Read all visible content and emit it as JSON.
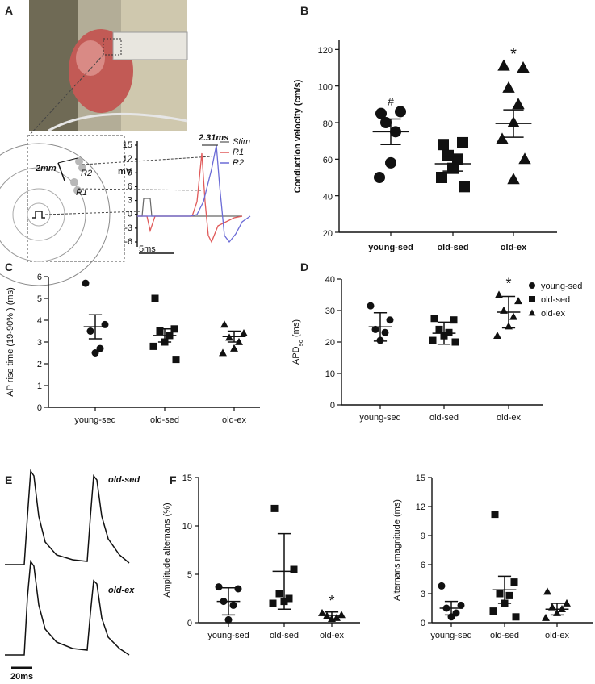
{
  "panels": {
    "A": {
      "label": "A",
      "annotations": {
        "distance": "2mm",
        "r1": "R1",
        "r2": "R2",
        "delay": "2.31ms",
        "yunit": "mV",
        "timebar": "5ms"
      },
      "legend": [
        {
          "name": "Stim",
          "color": "#777777"
        },
        {
          "name": "R1",
          "color": "#e05a5a"
        },
        {
          "name": "R2",
          "color": "#6b6bd6"
        }
      ],
      "yticks": [
        "15",
        "12",
        "9",
        "6",
        "3",
        "0",
        "-3",
        "-6"
      ]
    },
    "E": {
      "label": "E",
      "trace_labels": [
        "old-sed",
        "old-ex"
      ],
      "scalebar": "20ms"
    }
  },
  "chart_data": [
    {
      "id": "B",
      "label": "B",
      "type": "scatter",
      "ylabel": "Conduction velocity (cm/s)",
      "categories": [
        "young-sed",
        "old-sed",
        "old-ex"
      ],
      "yticks": [
        20,
        40,
        60,
        80,
        100,
        120
      ],
      "ylim": [
        20,
        125
      ],
      "markers": [
        "circle",
        "square",
        "triangle"
      ],
      "points": [
        [
          85,
          86,
          80,
          75,
          58,
          50
        ],
        [
          68,
          69,
          62,
          60,
          55,
          50,
          45
        ],
        [
          111,
          110,
          99,
          90,
          80,
          71,
          60,
          49
        ]
      ],
      "mean": [
        75,
        57.5,
        79.5
      ],
      "sem": [
        7,
        4,
        7.5
      ],
      "annotations": [
        "#",
        "",
        "*"
      ]
    },
    {
      "id": "C",
      "label": "C",
      "type": "scatter",
      "ylabel": "AP rise time (19-90% ) (ms)",
      "categories": [
        "young-sed",
        "old-sed",
        "old-ex"
      ],
      "yticks": [
        0,
        1,
        2,
        3,
        4,
        5,
        6
      ],
      "ylim": [
        0,
        6
      ],
      "markers": [
        "circle",
        "square",
        "triangle"
      ],
      "points": [
        [
          5.7,
          3.8,
          3.5,
          2.7,
          2.5
        ],
        [
          5.0,
          3.6,
          3.5,
          3.3,
          3.0,
          2.8,
          2.2
        ],
        [
          3.8,
          3.4,
          3.2,
          3.0,
          2.7,
          2.5
        ]
      ],
      "mean": [
        3.7,
        3.3,
        3.25
      ],
      "sem": [
        0.55,
        0.3,
        0.25
      ],
      "annotations": [
        "",
        "",
        ""
      ]
    },
    {
      "id": "D",
      "label": "D",
      "type": "scatter",
      "ylabel": "APD",
      "ylabel_sub": "90",
      "ylabel_unit": " (ms)",
      "categories": [
        "young-sed",
        "old-sed",
        "old-ex"
      ],
      "yticks": [
        0,
        10,
        20,
        30,
        40
      ],
      "ylim": [
        0,
        40
      ],
      "markers": [
        "circle",
        "square",
        "triangle"
      ],
      "points": [
        [
          31.5,
          27,
          24,
          23,
          20.5
        ],
        [
          27.5,
          27,
          24,
          23,
          22,
          20.5,
          20
        ],
        [
          35,
          33,
          30,
          28,
          25,
          22
        ]
      ],
      "mean": [
        24.8,
        22.8,
        29.5
      ],
      "sem": [
        4.5,
        3.5,
        5
      ],
      "annotations": [
        "",
        "",
        "*"
      ],
      "legend": [
        "young-sed",
        "old-sed",
        "old-ex"
      ]
    },
    {
      "id": "F1",
      "label": "F",
      "type": "scatter",
      "ylabel": "Amplitude alternans (%)",
      "categories": [
        "young-sed",
        "old-sed",
        "old-ex"
      ],
      "yticks": [
        0,
        5,
        10,
        15
      ],
      "ylim": [
        0,
        15
      ],
      "markers": [
        "circle",
        "square",
        "triangle"
      ],
      "points": [
        [
          3.7,
          3.5,
          2.2,
          1.8,
          0.3
        ],
        [
          11.8,
          5.5,
          3.0,
          2.5,
          2.2,
          2.0
        ],
        [
          1.0,
          0.8,
          0.7,
          0.5,
          0.4
        ]
      ],
      "mean": [
        2.2,
        5.3,
        0.75
      ],
      "sem": [
        1.4,
        3.9,
        0.35
      ],
      "annotations": [
        "",
        "",
        "*"
      ]
    },
    {
      "id": "F2",
      "label": "",
      "type": "scatter",
      "ylabel": "Alternans magnitude (ms)",
      "categories": [
        "young-sed",
        "old-sed",
        "old-ex"
      ],
      "yticks": [
        0,
        3,
        6,
        9,
        12,
        15
      ],
      "ylim": [
        0,
        15
      ],
      "markers": [
        "circle",
        "square",
        "triangle"
      ],
      "points": [
        [
          3.8,
          1.8,
          1.5,
          1.0,
          0.6
        ],
        [
          11.2,
          4.2,
          3.0,
          2.8,
          2.0,
          1.2,
          0.6
        ],
        [
          3.2,
          2.0,
          1.6,
          1.4,
          1.0,
          0.5
        ]
      ],
      "mean": [
        1.5,
        3.4,
        1.4
      ],
      "sem": [
        0.7,
        1.4,
        0.6
      ],
      "annotations": [
        "",
        "",
        ""
      ]
    }
  ]
}
